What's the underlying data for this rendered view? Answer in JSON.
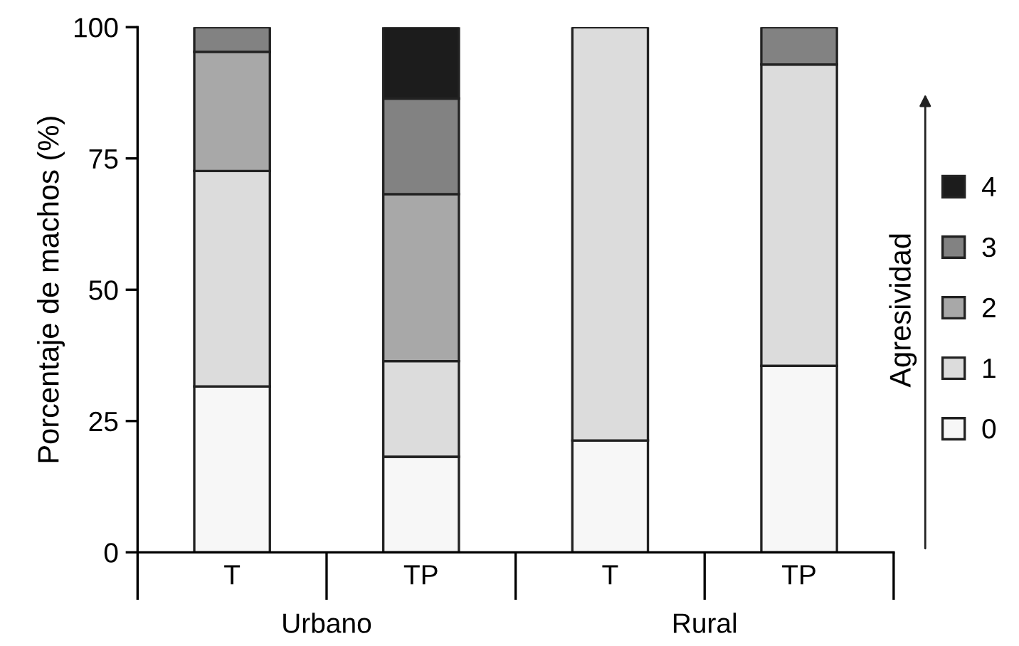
{
  "chart_data": {
    "type": "bar",
    "stacked": true,
    "categories": [
      "T",
      "TP",
      "T",
      "TP"
    ],
    "ylabel": "Porcentaje de machos (%)",
    "legend_title": "Agresividad",
    "annotations": [
      "Urbano",
      "Rural"
    ],
    "ylim": [
      0,
      100
    ],
    "yticks": [
      0,
      25,
      50,
      75,
      100
    ],
    "legend": "right",
    "series": [
      {
        "name": "0",
        "color": "#f7f7f7",
        "values": [
          31.6,
          18.2,
          21.3,
          35.5
        ]
      },
      {
        "name": "1",
        "color": "#dcdcdc",
        "values": [
          41.0,
          18.2,
          78.7,
          57.4
        ]
      },
      {
        "name": "2",
        "color": "#a8a8a8",
        "values": [
          22.7,
          31.8,
          0,
          0
        ]
      },
      {
        "name": "3",
        "color": "#828282",
        "values": [
          4.7,
          18.2,
          0,
          7.1
        ]
      },
      {
        "name": "4",
        "color": "#1c1c1c",
        "values": [
          0,
          13.6,
          0,
          0
        ]
      }
    ]
  }
}
